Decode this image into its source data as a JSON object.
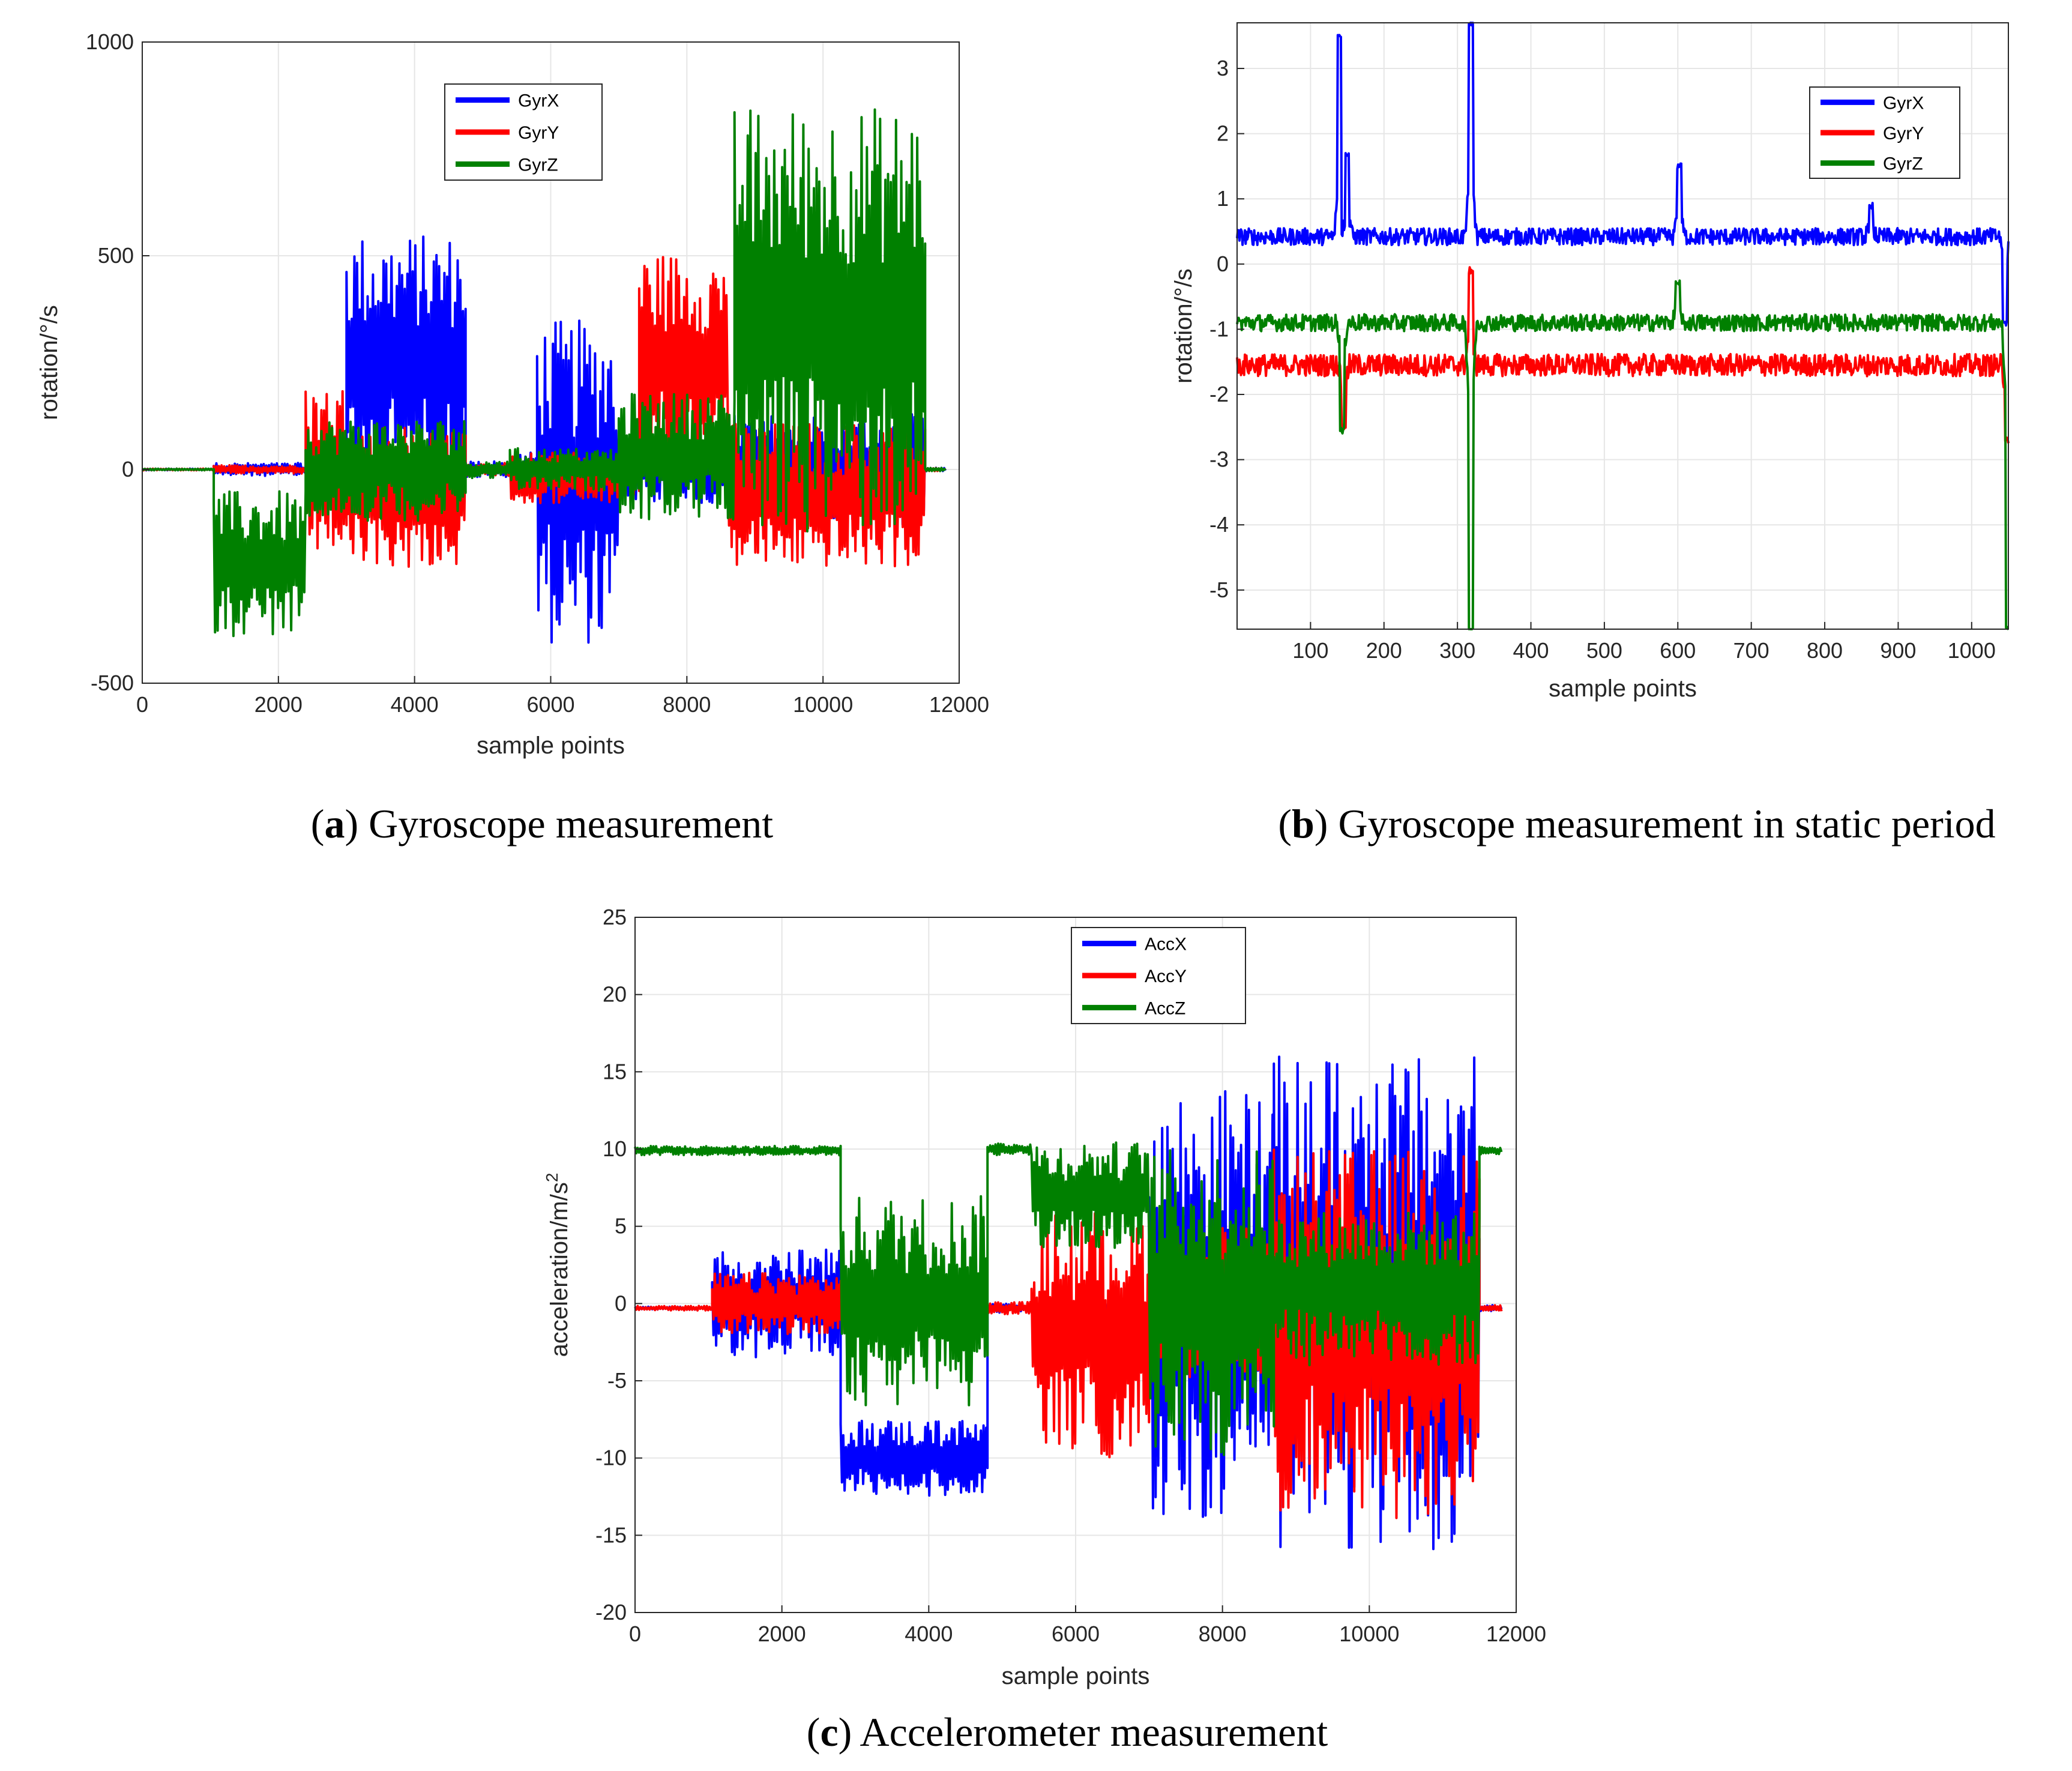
{
  "chart_data": [
    {
      "id": "a",
      "type": "line",
      "caption_letter": "a",
      "caption_text": " Gyroscope measurement",
      "xlabel": "sample points",
      "ylabel": "rotation/°/s",
      "xlim": [
        0,
        12000
      ],
      "ylim": [
        -500,
        1000
      ],
      "xticks": [
        0,
        2000,
        4000,
        6000,
        8000,
        10000,
        12000
      ],
      "yticks": [
        -500,
        0,
        500,
        1000
      ],
      "legend": [
        "GyrX",
        "GyrY",
        "GyrZ"
      ],
      "legend_position": "top-center",
      "series": [
        {
          "name": "GyrX",
          "color": "#0000ff",
          "segments": [
            {
              "x0": 0,
              "x1": 1050,
              "base": 0,
              "amp": 2
            },
            {
              "x0": 1050,
              "x1": 2500,
              "base": 0,
              "amp": 15
            },
            {
              "x0": 2500,
              "x1": 3000,
              "base": 0,
              "amp": 60
            },
            {
              "x0": 3000,
              "x1": 4750,
              "base": 250,
              "amp": 300
            },
            {
              "x0": 4750,
              "x1": 5400,
              "base": 0,
              "amp": 20
            },
            {
              "x0": 5400,
              "x1": 5800,
              "base": 0,
              "amp": 40
            },
            {
              "x0": 5800,
              "x1": 7000,
              "base": -30,
              "amp": 380
            },
            {
              "x0": 7000,
              "x1": 8700,
              "base": 0,
              "amp": 80
            },
            {
              "x0": 8700,
              "x1": 11500,
              "base": 0,
              "amp": 130
            },
            {
              "x0": 11500,
              "x1": 11800,
              "base": 0,
              "amp": 4
            }
          ]
        },
        {
          "name": "GyrY",
          "color": "#ff0000",
          "segments": [
            {
              "x0": 0,
              "x1": 1050,
              "base": 0,
              "amp": 2
            },
            {
              "x0": 1050,
              "x1": 2400,
              "base": 0,
              "amp": 10
            },
            {
              "x0": 2400,
              "x1": 3000,
              "base": 0,
              "amp": 200
            },
            {
              "x0": 3000,
              "x1": 4750,
              "base": -60,
              "amp": 170
            },
            {
              "x0": 4750,
              "x1": 5400,
              "base": 0,
              "amp": 15
            },
            {
              "x0": 5400,
              "x1": 7000,
              "base": -20,
              "amp": 60
            },
            {
              "x0": 7000,
              "x1": 7300,
              "base": 0,
              "amp": 60
            },
            {
              "x0": 7300,
              "x1": 8600,
              "base": 250,
              "amp": 260
            },
            {
              "x0": 8600,
              "x1": 11500,
              "base": -60,
              "amp": 170
            },
            {
              "x0": 11500,
              "x1": 11800,
              "base": 0,
              "amp": 4
            }
          ]
        },
        {
          "name": "GyrZ",
          "color": "#008000",
          "segments": [
            {
              "x0": 0,
              "x1": 1050,
              "base": 0,
              "amp": 2
            },
            {
              "x0": 1050,
              "x1": 2400,
              "base": -220,
              "amp": 170
            },
            {
              "x0": 2400,
              "x1": 4750,
              "base": 0,
              "amp": 120
            },
            {
              "x0": 4750,
              "x1": 5400,
              "base": 0,
              "amp": 20
            },
            {
              "x0": 5400,
              "x1": 7000,
              "base": 0,
              "amp": 50
            },
            {
              "x0": 7000,
              "x1": 8700,
              "base": 30,
              "amp": 150
            },
            {
              "x0": 8700,
              "x1": 11500,
              "base": 350,
              "amp": 500
            },
            {
              "x0": 11500,
              "x1": 11800,
              "base": 0,
              "amp": 4
            }
          ]
        }
      ]
    },
    {
      "id": "b",
      "type": "line",
      "caption_letter": "b",
      "caption_text": " Gyroscope measurement in static period",
      "xlabel": "sample points",
      "ylabel": "rotation/°/s",
      "xlim": [
        0,
        1050
      ],
      "ylim": [
        -5.6,
        3.7
      ],
      "xticks": [
        100,
        200,
        300,
        400,
        500,
        600,
        700,
        800,
        900,
        1000
      ],
      "yticks": [
        -5,
        -4,
        -3,
        -2,
        -1,
        0,
        1,
        2,
        3
      ],
      "legend": [
        "GyrX",
        "GyrY",
        "GyrZ"
      ],
      "legend_position": "top-right",
      "series": [
        {
          "name": "GyrX",
          "color": "#0000ff",
          "mean": 0.42,
          "noise": 0.13,
          "spikes": [
            {
              "x": 140,
              "y": 3.5
            },
            {
              "x": 150,
              "y": 1.7
            },
            {
              "x": 318,
              "y": 3.7
            },
            {
              "x": 602,
              "y": 1.5
            },
            {
              "x": 863,
              "y": 0.9
            },
            {
              "x": 1045,
              "y": -0.9
            }
          ]
        },
        {
          "name": "GyrY",
          "color": "#ff0000",
          "mean": -1.55,
          "noise": 0.17,
          "spikes": [
            {
              "x": 145,
              "y": -2.5
            },
            {
              "x": 318,
              "y": -0.1
            },
            {
              "x": 1048,
              "y": -2.7
            }
          ]
        },
        {
          "name": "GyrZ",
          "color": "#008000",
          "mean": -0.9,
          "noise": 0.13,
          "spikes": [
            {
              "x": 143,
              "y": -2.55
            },
            {
              "x": 318,
              "y": -5.6
            },
            {
              "x": 600,
              "y": -0.3
            },
            {
              "x": 1049,
              "y": -5.6
            }
          ]
        }
      ]
    },
    {
      "id": "c",
      "type": "line",
      "caption_letter": "c",
      "caption_text": " Accelerometer measurement",
      "xlabel": "sample points",
      "ylabel": "acceleration/m/s",
      "ylabel_sup": "2",
      "xlim": [
        0,
        12000
      ],
      "ylim": [
        -20,
        25
      ],
      "xticks": [
        0,
        2000,
        4000,
        6000,
        8000,
        10000,
        12000
      ],
      "yticks": [
        -20,
        -15,
        -10,
        -5,
        0,
        5,
        10,
        15,
        20,
        25
      ],
      "legend": [
        "AccX",
        "AccY",
        "AccZ"
      ],
      "legend_position": "top-center",
      "series": [
        {
          "name": "AccX",
          "color": "#0000ff",
          "segments": [
            {
              "x0": 0,
              "x1": 1050,
              "base": -0.3,
              "amp": 0.1
            },
            {
              "x0": 1050,
              "x1": 2800,
              "base": 0,
              "amp": 3.5
            },
            {
              "x0": 2800,
              "x1": 4800,
              "base": -10,
              "amp": 2.5
            },
            {
              "x0": 4800,
              "x1": 5400,
              "base": -0.3,
              "amp": 0.3
            },
            {
              "x0": 5400,
              "x1": 7000,
              "base": -0.5,
              "amp": 0.6
            },
            {
              "x0": 7000,
              "x1": 8700,
              "base": 0,
              "amp": 14
            },
            {
              "x0": 8700,
              "x1": 11500,
              "base": 0,
              "amp": 16
            },
            {
              "x0": 11500,
              "x1": 11800,
              "base": -0.3,
              "amp": 0.2
            }
          ]
        },
        {
          "name": "AccY",
          "color": "#ff0000",
          "segments": [
            {
              "x0": 0,
              "x1": 1050,
              "base": -0.3,
              "amp": 0.15
            },
            {
              "x0": 1050,
              "x1": 2800,
              "base": 0,
              "amp": 2
            },
            {
              "x0": 2800,
              "x1": 4800,
              "base": 0,
              "amp": 2
            },
            {
              "x0": 4800,
              "x1": 5400,
              "base": -0.3,
              "amp": 0.4
            },
            {
              "x0": 5400,
              "x1": 7000,
              "base": -2,
              "amp": 8
            },
            {
              "x0": 7000,
              "x1": 8700,
              "base": 0,
              "amp": 5
            },
            {
              "x0": 8700,
              "x1": 11500,
              "base": -2,
              "amp": 12
            },
            {
              "x0": 11500,
              "x1": 11800,
              "base": -0.3,
              "amp": 0.2
            }
          ]
        },
        {
          "name": "AccZ",
          "color": "#008000",
          "segments": [
            {
              "x0": 0,
              "x1": 2800,
              "base": 9.9,
              "amp": 0.3
            },
            {
              "x0": 2800,
              "x1": 4800,
              "base": 0,
              "amp": 7
            },
            {
              "x0": 4800,
              "x1": 5400,
              "base": 10,
              "amp": 0.4
            },
            {
              "x0": 5400,
              "x1": 7000,
              "base": 7,
              "amp": 3.5
            },
            {
              "x0": 7000,
              "x1": 8700,
              "base": 0,
              "amp": 10
            },
            {
              "x0": 8700,
              "x1": 11500,
              "base": 1,
              "amp": 5
            },
            {
              "x0": 11500,
              "x1": 11800,
              "base": 9.9,
              "amp": 0.3
            }
          ]
        }
      ]
    }
  ]
}
